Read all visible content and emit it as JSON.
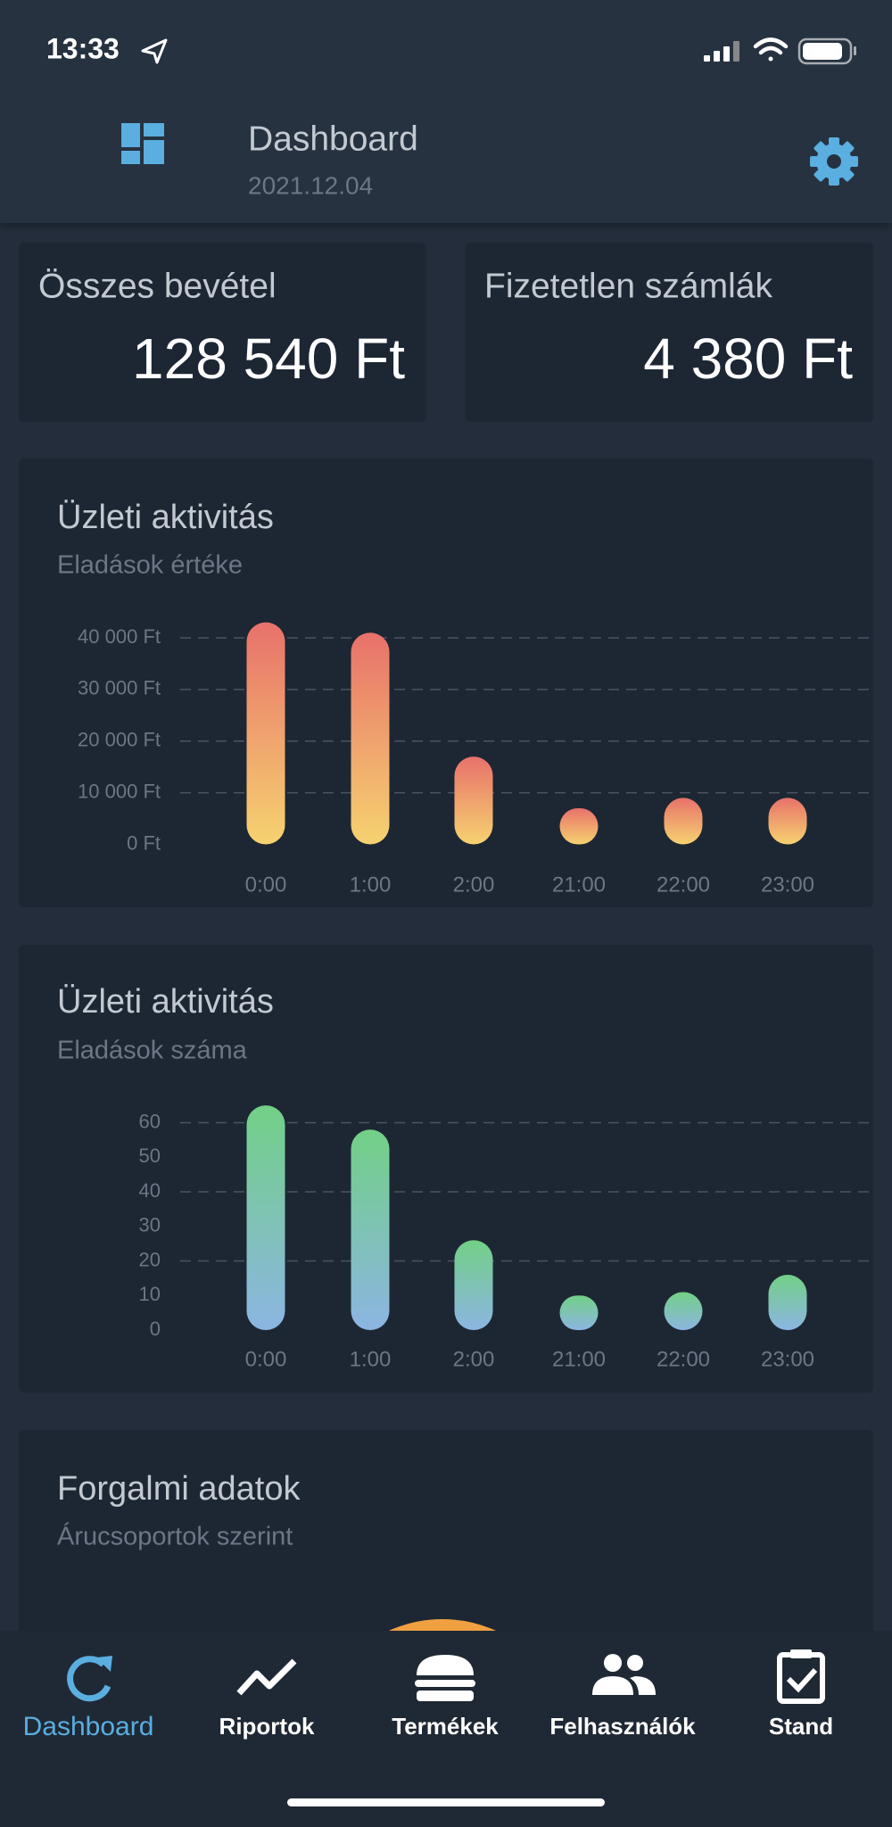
{
  "status_bar": {
    "time": "13:33"
  },
  "header": {
    "title": "Dashboard",
    "date": "2021.12.04"
  },
  "summary_cards": [
    {
      "label": "Összes bevétel",
      "value": "128 540 Ft"
    },
    {
      "label": "Fizetetlen számlák",
      "value": "4 380 Ft"
    }
  ],
  "charts": [
    {
      "type": "bar",
      "title": "Üzleti aktivitás",
      "subtitle": "Eladások értéke",
      "categories": [
        "0:00",
        "1:00",
        "2:00",
        "21:00",
        "22:00",
        "23:00"
      ],
      "values": [
        43000,
        41000,
        17000,
        7000,
        9000,
        9000
      ],
      "colors": [
        "#e8716b",
        "#f6d270"
      ],
      "ylim": [
        0,
        40000
      ],
      "yticks": [
        {
          "value": 0,
          "label": "0 Ft"
        },
        {
          "value": 10000,
          "label": "10 000 Ft"
        },
        {
          "value": 20000,
          "label": "20 000 Ft"
        },
        {
          "value": 30000,
          "label": "30 000 Ft"
        },
        {
          "value": 40000,
          "label": "40 000 Ft"
        }
      ],
      "grid": true
    },
    {
      "type": "bar",
      "title": "Üzleti aktivitás",
      "subtitle": "Eladások száma",
      "categories": [
        "0:00",
        "1:00",
        "2:00",
        "21:00",
        "22:00",
        "23:00"
      ],
      "values": [
        65,
        58,
        26,
        10,
        11,
        16
      ],
      "colors": [
        "#72d086",
        "#8cb5e2"
      ],
      "ylim": [
        0,
        60
      ],
      "yticks": [
        0,
        10,
        20,
        30,
        40,
        50,
        60
      ],
      "grid": true
    }
  ],
  "sales_groups": {
    "title": "Forgalmi adatok",
    "subtitle": "Árucsoportok szerint"
  },
  "nav": [
    {
      "label": "Dashboard",
      "active": true
    },
    {
      "label": "Riportok",
      "active": false
    },
    {
      "label": "Termékek",
      "active": false
    },
    {
      "label": "Felhasználók",
      "active": false
    },
    {
      "label": "Stand",
      "active": false
    }
  ]
}
